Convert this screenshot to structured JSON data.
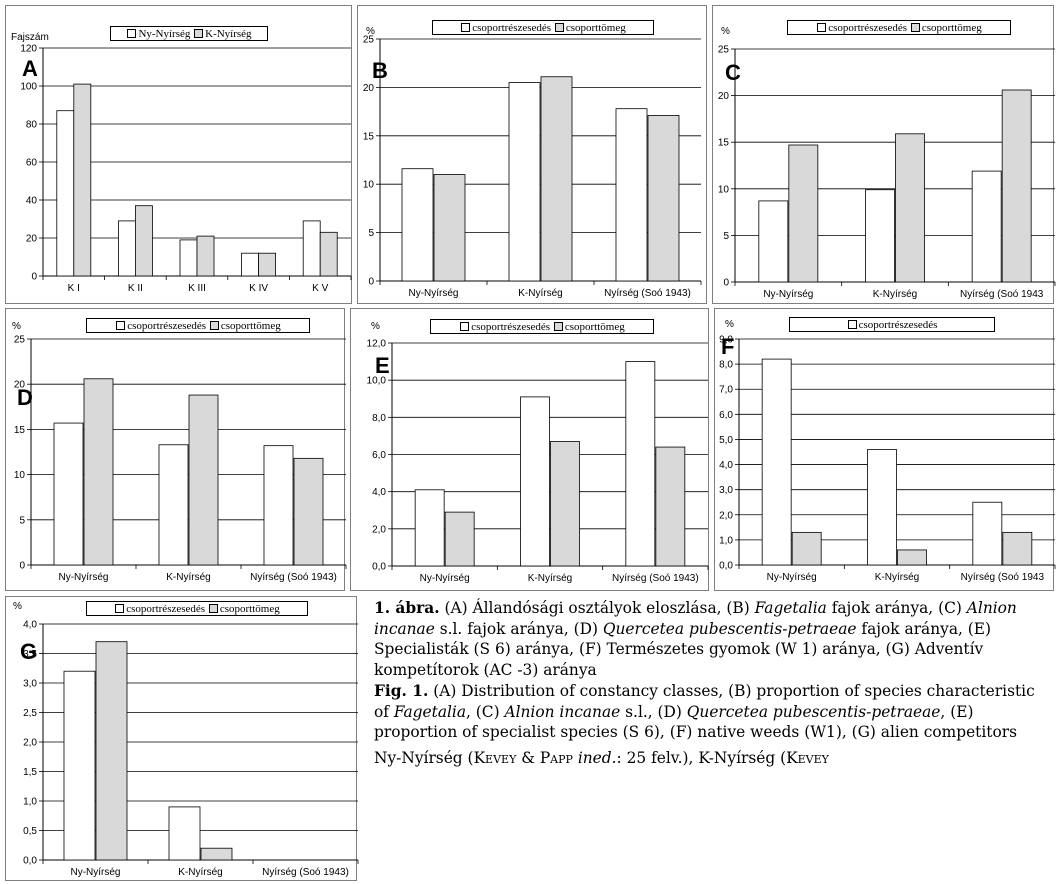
{
  "chart_data": [
    {
      "type": "bar",
      "panel_label": "A",
      "unit_label": "Fajszám",
      "categories": [
        "K I",
        "K II",
        "K III",
        "K IV",
        "K V"
      ],
      "series": [
        {
          "name": "Ny-Nyírség",
          "color": "#ffffff",
          "values": [
            87,
            29,
            19,
            12,
            29
          ]
        },
        {
          "name": "K-Nyírség",
          "color": "#d9d9d9",
          "values": [
            101,
            37,
            21,
            12,
            23
          ]
        }
      ],
      "ylim": [
        0,
        120
      ],
      "yticks": [
        "0",
        "20",
        "40",
        "60",
        "80",
        "100",
        "120"
      ],
      "grid": true,
      "legend": "top"
    },
    {
      "type": "bar",
      "panel_label": "B",
      "unit_label": "%",
      "categories": [
        "Ny-Nyírség",
        "K-Nyírség",
        "Nyírség (Soó 1943)"
      ],
      "series": [
        {
          "name": "csoportrészesedés",
          "color": "#ffffff",
          "values": [
            11.6,
            20.5,
            17.8
          ]
        },
        {
          "name": "csoporttömeg",
          "color": "#d9d9d9",
          "values": [
            11.0,
            21.1,
            17.1
          ]
        }
      ],
      "ylim": [
        0,
        25
      ],
      "yticks": [
        "0",
        "5",
        "10",
        "15",
        "20",
        "25"
      ],
      "grid": true,
      "legend": "top"
    },
    {
      "type": "bar",
      "panel_label": "C",
      "unit_label": "%",
      "categories": [
        "Ny-Nyírség",
        "K-Nyírség",
        "Nyírség (Soó 1943"
      ],
      "series": [
        {
          "name": "csoportrészesedés",
          "color": "#ffffff",
          "values": [
            8.7,
            9.9,
            11.9
          ]
        },
        {
          "name": "csoporttömeg",
          "color": "#d9d9d9",
          "values": [
            14.7,
            15.9,
            20.6
          ]
        }
      ],
      "ylim": [
        0,
        25
      ],
      "yticks": [
        "0",
        "5",
        "10",
        "15",
        "20",
        "25"
      ],
      "grid": true,
      "legend": "top"
    },
    {
      "type": "bar",
      "panel_label": "D",
      "unit_label": "%",
      "categories": [
        "Ny-Nyírség",
        "K-Nyírség",
        "Nyírség (Soó 1943)"
      ],
      "series": [
        {
          "name": "csoportrészesedés",
          "color": "#ffffff",
          "values": [
            15.7,
            13.3,
            13.2
          ]
        },
        {
          "name": "csoporttömeg",
          "color": "#d9d9d9",
          "values": [
            20.6,
            18.8,
            11.8
          ]
        }
      ],
      "ylim": [
        0,
        25
      ],
      "yticks": [
        "0",
        "5",
        "10",
        "15",
        "20",
        "25"
      ],
      "grid": true,
      "legend": "top"
    },
    {
      "type": "bar",
      "panel_label": "E",
      "unit_label": "%",
      "categories": [
        "Ny-Nyírség",
        "K-Nyírség",
        "Nyírség (Soó 1943)"
      ],
      "series": [
        {
          "name": "csoportrészesedés",
          "color": "#ffffff",
          "values": [
            4.1,
            9.1,
            11.0
          ]
        },
        {
          "name": "csoporttömeg",
          "color": "#d9d9d9",
          "values": [
            2.9,
            6.7,
            6.4
          ]
        }
      ],
      "ylim": [
        0,
        12
      ],
      "yticks": [
        "0,0",
        "2,0",
        "4,0",
        "6,0",
        "8,0",
        "10,0",
        "12,0"
      ],
      "grid": true,
      "legend": "top"
    },
    {
      "type": "bar",
      "panel_label": "F",
      "unit_label": "%",
      "categories": [
        "Ny-Nyírség",
        "K-Nyírség",
        "Nyírség (Soó 1943"
      ],
      "series": [
        {
          "name": "csoportrészesedés",
          "color": "#ffffff",
          "values": [
            8.2,
            4.6,
            2.5
          ]
        },
        {
          "name": "",
          "color": "#d9d9d9",
          "values": [
            1.3,
            0.6,
            1.3
          ]
        }
      ],
      "ylim": [
        0,
        9
      ],
      "yticks": [
        "0,0",
        "1,0",
        "2,0",
        "3,0",
        "4,0",
        "5,0",
        "6,0",
        "7,0",
        "8,0",
        "9,0"
      ],
      "grid": true,
      "legend": "top"
    },
    {
      "type": "bar",
      "panel_label": "G",
      "unit_label": "%",
      "categories": [
        "Ny-Nyírség",
        "K-Nyírség",
        "Nyírség (Soó 1943)"
      ],
      "series": [
        {
          "name": "csoportrészesedés",
          "color": "#ffffff",
          "values": [
            3.2,
            0.9,
            0
          ]
        },
        {
          "name": "csoporttömeg",
          "color": "#d9d9d9",
          "values": [
            3.7,
            0.2,
            0
          ]
        }
      ],
      "ylim": [
        0,
        4
      ],
      "yticks": [
        "0,0",
        "0,5",
        "1,0",
        "1,5",
        "2,0",
        "2,5",
        "3,0",
        "3,5",
        "4,0"
      ],
      "grid": true,
      "legend": "top"
    }
  ],
  "caption": {
    "hu_lead": "1. ábra.",
    "hu_a": " (A) Állandósági osztályok eloszlása, (B) ",
    "hu_fagetalia": "Fagetalia",
    "hu_b": " fajok aránya, (C) ",
    "hu_alnion": "Alnion incanae",
    "hu_c": " s.l. fajok aránya, (D) ",
    "hu_quercetea": "Quercetea pubescentis-petraeae",
    "hu_d": " fajok aránya, (E) Specialisták (S 6) aránya, (F) Természetes gyomok (W 1) aránya, (G) Adventív kompetítorok (AC -3) aránya",
    "en_lead": "Fig. 1.",
    "en_a": " (A) Distribution of constancy classes, (B) proportion of species characteristic of ",
    "en_fagetalia": "Fagetalia",
    "en_b": ", (C) ",
    "en_alnion": "Alnion incanae",
    "en_c": " s.l., (D) ",
    "en_quercetea": "Quercetea pubescentis-petraeae",
    "en_d": ", (E) proportion of specialist species (S 6), (F) native weeds (W1), (G) alien competitors",
    "last_a": "Ny-Nyírség (",
    "last_kevey": "Kevey",
    "last_amp": " & ",
    "last_papp": "Papp",
    "last_ined": "ined.",
    "last_b": ": 25 felv.), K-Nyírség (",
    "last_kevey2": "Kevey"
  }
}
